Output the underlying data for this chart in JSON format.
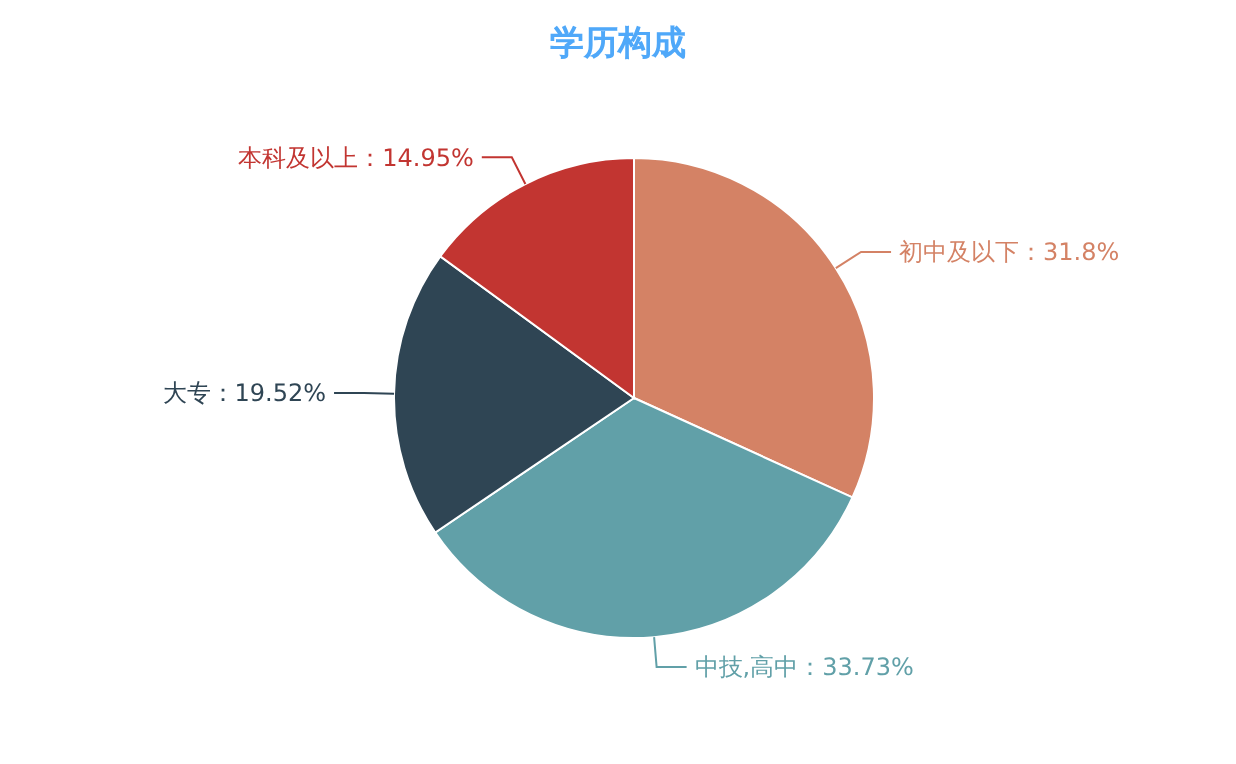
{
  "chart_data": {
    "type": "pie",
    "title": "学历构成",
    "categories": [
      "初中及以下",
      "中技,高中",
      "大专",
      "本科及以上"
    ],
    "values": [
      31.8,
      33.73,
      19.52,
      14.95
    ],
    "value_labels": [
      "31.8%",
      "33.73%",
      "19.52%",
      "14.95%"
    ],
    "colors": [
      "#d48265",
      "#61a0a8",
      "#2f4554",
      "#c23531"
    ]
  }
}
